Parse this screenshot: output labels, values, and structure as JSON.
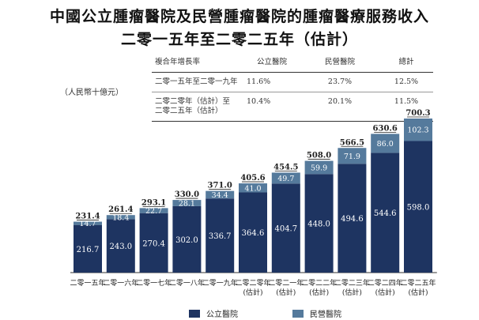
{
  "title_line1": "中國公立腫瘤醫院及民營腫瘤醫院的腫瘤醫療服務收入",
  "title_line2": "二零一五年至二零二五年（估計）",
  "unit_label": "（人民幣十億元）",
  "cagr_table": {
    "headers": [
      "複合年增長率",
      "公立醫院",
      "民營醫院",
      "總計"
    ],
    "rows": [
      {
        "period": [
          "二零一五年至二零一九年"
        ],
        "public": "11.6%",
        "private": "23.7%",
        "total": "12.5%"
      },
      {
        "period": [
          "二零二零年（估計）至",
          "二零二五年（估計）"
        ],
        "public": "10.4%",
        "private": "20.1%",
        "total": "11.5%"
      }
    ]
  },
  "chart_data": {
    "type": "bar",
    "stacked": true,
    "categories": [
      [
        "二零一五年"
      ],
      [
        "二零一六年"
      ],
      [
        "二零一七年"
      ],
      [
        "二零一八年"
      ],
      [
        "二零一九年"
      ],
      [
        "二零二零年",
        "(估計)"
      ],
      [
        "二零二一年",
        "(估計)"
      ],
      [
        "二零二二年",
        "(估計)"
      ],
      [
        "二零二三年",
        "(估計)"
      ],
      [
        "二零二四年",
        "(估計)"
      ],
      [
        "二零二五年",
        "(估計)"
      ]
    ],
    "series": [
      {
        "name": "公立醫院",
        "color": "#1e3461",
        "values": [
          216.7,
          243.0,
          270.4,
          302.0,
          336.7,
          364.6,
          404.7,
          448.0,
          494.6,
          544.6,
          598.0
        ]
      },
      {
        "name": "民營醫院",
        "color": "#557a9c",
        "values": [
          14.7,
          18.4,
          22.7,
          28.1,
          34.4,
          41.0,
          49.7,
          59.9,
          71.9,
          86.0,
          102.3
        ]
      }
    ],
    "totals": [
      231.4,
      261.4,
      293.1,
      330.0,
      371.0,
      405.6,
      454.5,
      508.0,
      566.5,
      630.6,
      700.3
    ],
    "ylim": [
      0,
      700.3
    ],
    "legend_position": "bottom"
  }
}
